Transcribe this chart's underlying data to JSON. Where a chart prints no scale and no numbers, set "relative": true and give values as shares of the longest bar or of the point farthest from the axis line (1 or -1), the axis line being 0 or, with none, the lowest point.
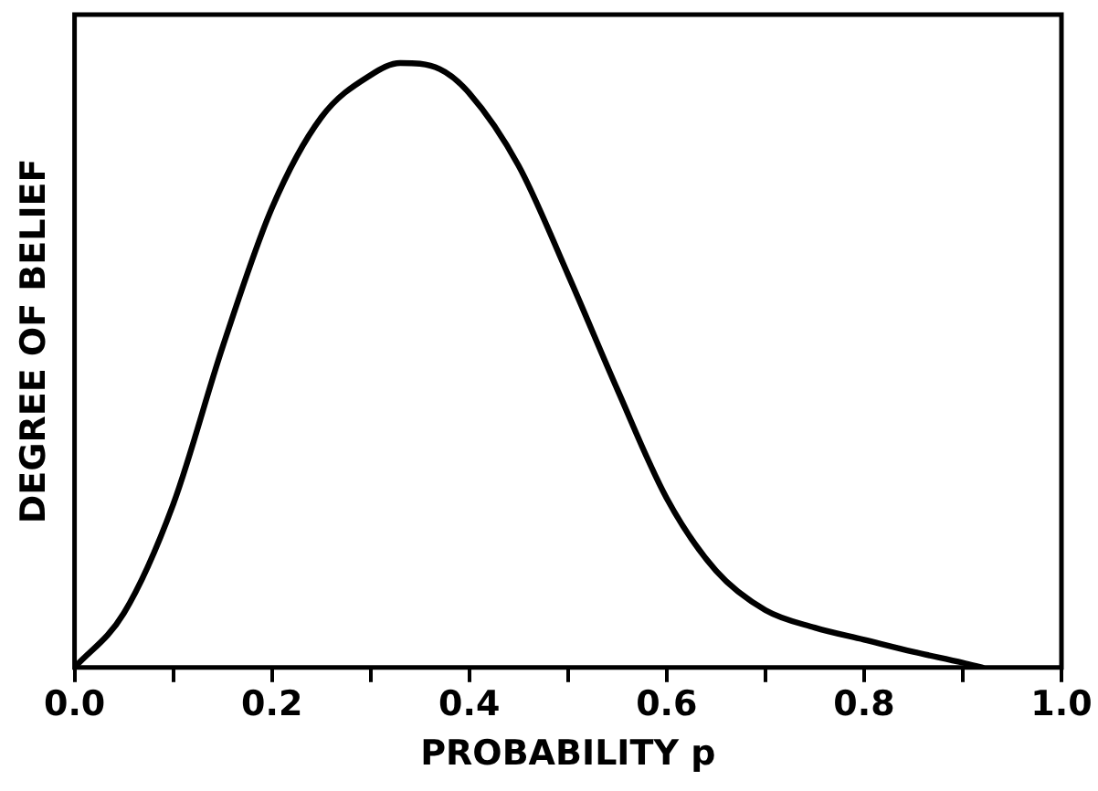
{
  "chart_data": {
    "type": "line",
    "relative": true,
    "xlabel": "PROBABILITY p",
    "ylabel": "DEGREE OF BELIEF",
    "marker": "none",
    "line_style": "solid",
    "grid": false,
    "legend": false,
    "xlim": [
      0,
      1
    ],
    "xticks": [
      {
        "value": 0,
        "label": "0.0"
      },
      {
        "value": 0.1,
        "label": null
      },
      {
        "value": 0.2,
        "label": "0.2"
      },
      {
        "value": 0.3,
        "label": null
      },
      {
        "value": 0.4,
        "label": "0.4"
      },
      {
        "value": 0.5,
        "label": null
      },
      {
        "value": 0.6,
        "label": "0.6"
      },
      {
        "value": 0.7,
        "label": null
      },
      {
        "value": 0.8,
        "label": "0.8"
      },
      {
        "value": 0.9,
        "label": null
      },
      {
        "value": 1,
        "label": "1.0"
      }
    ],
    "series": [
      {
        "color": "#000000",
        "x": [
          0,
          0.05,
          0.1,
          0.15,
          0.2,
          0.25,
          0.3,
          0.33,
          0.37,
          0.4,
          0.45,
          0.5,
          0.55,
          0.6,
          0.65,
          0.7,
          0.75,
          0.8,
          0.85,
          0.9,
          0.92
        ],
        "values": [
          0,
          0.09,
          0.27,
          0.53,
          0.76,
          0.91,
          0.98,
          1,
          0.99,
          0.95,
          0.83,
          0.65,
          0.46,
          0.28,
          0.16,
          0.095,
          0.066,
          0.046,
          0.026,
          0.008,
          0
        ]
      }
    ]
  }
}
